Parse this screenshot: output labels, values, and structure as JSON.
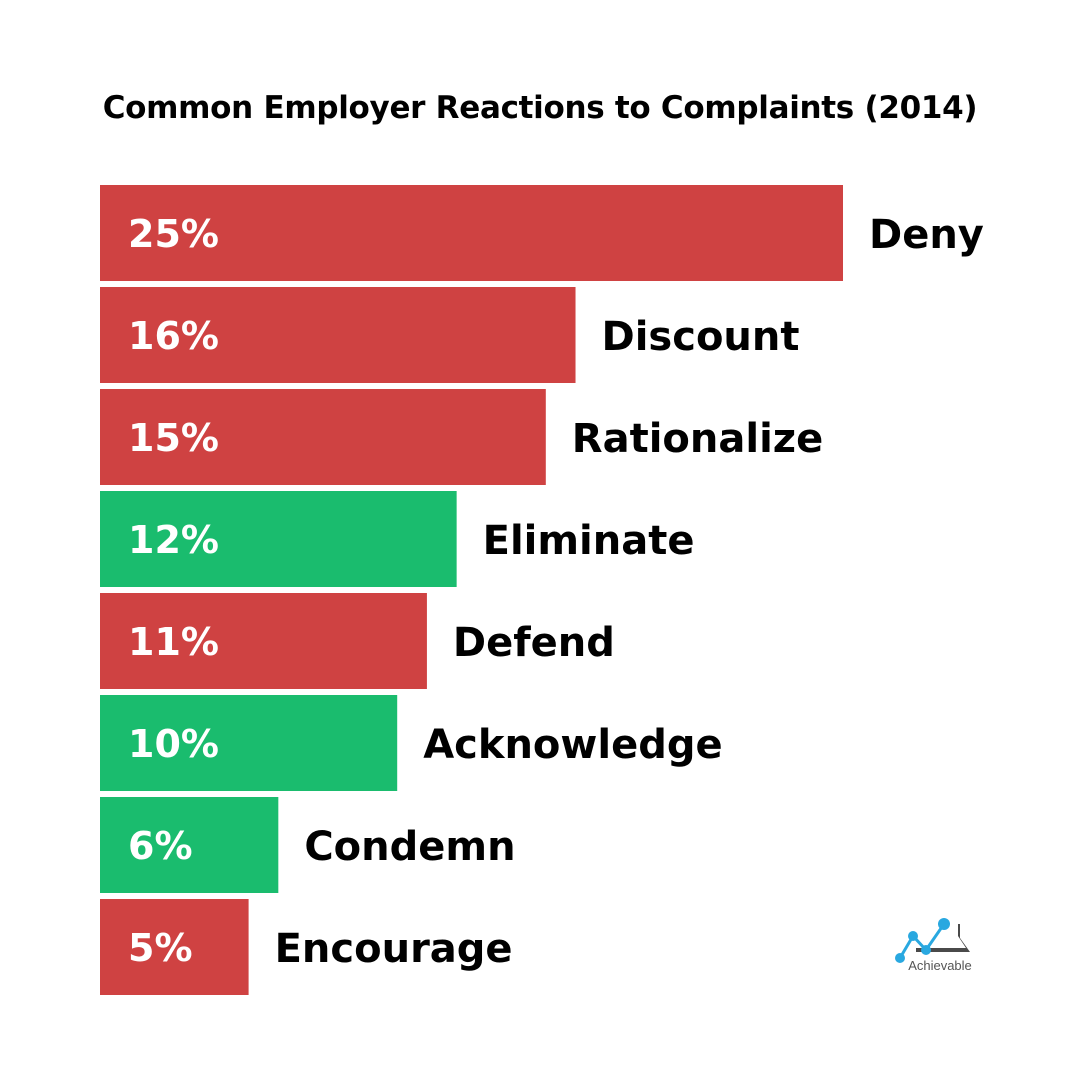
{
  "chart_data": {
    "type": "bar",
    "orientation": "horizontal",
    "title": "Common Employer Reactions to Complaints (2014)",
    "categories": [
      "Deny",
      "Discount",
      "Rationalize",
      "Eliminate",
      "Defend",
      "Acknowledge",
      "Condemn",
      "Encourage"
    ],
    "values": [
      25,
      16,
      15,
      12,
      11,
      10,
      6,
      5
    ],
    "value_labels": [
      "25%",
      "16%",
      "15%",
      "12%",
      "11%",
      "10%",
      "6%",
      "5%"
    ],
    "bar_colors": [
      "#CF4242",
      "#CF4242",
      "#CF4242",
      "#1ABC6E",
      "#CF4242",
      "#1ABC6E",
      "#1ABC6E",
      "#CF4242"
    ],
    "xlim": [
      0,
      25
    ],
    "grid": false,
    "legend": "none"
  },
  "logo": {
    "text": "Achievable",
    "colors": {
      "line": "#29A8E0",
      "mountain": "#4A4A4A"
    }
  }
}
